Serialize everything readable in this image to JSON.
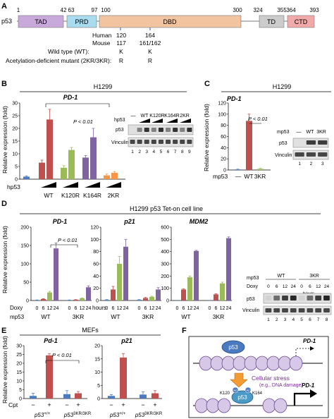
{
  "panel_a": {
    "label": "A",
    "protein": "p53",
    "boundaries": [
      "1",
      "42",
      "63",
      "97",
      "100",
      "300",
      "324",
      "355",
      "364",
      "393"
    ],
    "domains": [
      {
        "name": "TAD",
        "color": "#c9a8dc"
      },
      {
        "name": "PRD",
        "color": "#a8dcee"
      },
      {
        "name": "DBD",
        "color": "#f2c4a0"
      },
      {
        "name": "TD",
        "color": "#cccccc"
      },
      {
        "name": "CTD",
        "color": "#f2a9a9"
      }
    ],
    "rows": [
      {
        "label": "Human",
        "v1": "120",
        "v2": "164"
      },
      {
        "label": "Mouse",
        "v1": "117",
        "v2": "161/162"
      },
      {
        "label": "Wild type (WT):",
        "v1": "K",
        "v2": "K"
      },
      {
        "label": "Acetylation-deficient mutant (2KR/3KR):",
        "v1": "R",
        "v2": "R"
      }
    ]
  },
  "panel_b": {
    "label": "B",
    "cell_line": "H1299",
    "gene": "PD-1",
    "pvalue": "P < 0.01",
    "ylabel": "Relative expression (fold)",
    "x_name": "hp53",
    "groups": [
      "WT",
      "K120R",
      "K164R",
      "2KR"
    ],
    "blot": {
      "lane_header": "hp53",
      "groups": [
        "—",
        "WT",
        "K120R",
        "K164R",
        "2KR"
      ],
      "rows": [
        "p53",
        "Vinculin"
      ],
      "lanes": [
        "1",
        "2",
        "3",
        "4",
        "5",
        "6",
        "7",
        "8",
        "9"
      ]
    }
  },
  "panel_c": {
    "label": "C",
    "cell_line": "H1299",
    "gene": "PD-1",
    "pvalue": "P < 0.01",
    "ylabel": "Relative expression (fold)",
    "x_name": "mp53",
    "blot": {
      "lane_header": "mp53",
      "groups": [
        "—",
        "WT",
        "3KR"
      ],
      "rows": [
        "p53",
        "Vinculin"
      ],
      "lanes": [
        "1",
        "2",
        "3"
      ]
    }
  },
  "panel_d": {
    "label": "D",
    "cell_line": "H1299 p53 Tet-on cell line",
    "ylabel": "Relative expression (fold)",
    "genes": [
      "PD-1",
      "p21",
      "MDM2"
    ],
    "pvalue": "P < 0.01",
    "doxy_label": "Doxy",
    "hours_label": "hours",
    "mp53_label": "mp53",
    "groups": [
      "WT",
      "3KR"
    ],
    "time_points": [
      "0",
      "6",
      "12",
      "24"
    ],
    "blot": {
      "lane_header": "mp53",
      "doxy_label": "Doxy",
      "hours_label": "hours",
      "groups": [
        "WT",
        "3KR"
      ],
      "rows": [
        "p53",
        "Vinculin"
      ],
      "lanes": [
        "1",
        "2",
        "3",
        "4",
        "5",
        "6",
        "7",
        "8"
      ]
    }
  },
  "panel_e": {
    "label": "E",
    "cell_line": "MEFs",
    "genes": [
      "Pd-1",
      "p21"
    ],
    "pvalue": "P < 0.01",
    "ylabel": "Relative expression (fold)",
    "x_name": "Cpt",
    "signs": [
      "−",
      "+"
    ],
    "genotypes": [
      "p53+/+",
      "p533KR/3KR"
    ]
  },
  "panel_f": {
    "label": "F",
    "p53_label": "p53",
    "gene": "PD-1",
    "stress_title": "Cellular stress",
    "stress_sub": "(e.g., DNA damage)",
    "k120": "K120",
    "k164": "K164",
    "ac": "Ac"
  },
  "colors": {
    "blue": "#4a7bc1",
    "red": "#c0504d",
    "green": "#9bbb59",
    "purple": "#8064a2",
    "orange": "#f79646"
  },
  "chart_data": [
    {
      "panel": "B",
      "type": "bar",
      "title": "PD-1",
      "ylabel": "Relative expression (fold)",
      "ylim": [
        0,
        30
      ],
      "yticks": [
        0,
        5,
        10,
        15,
        20,
        25,
        30
      ],
      "values": [
        1,
        6.5,
        23.5,
        4.5,
        11.5,
        8.5,
        16.5,
        1.5,
        2.5
      ],
      "errors": [
        0.3,
        1.0,
        4.0,
        0.8,
        1.0,
        0.8,
        3.5,
        0.5,
        0.5
      ],
      "colors": [
        "blue",
        "red",
        "red",
        "green",
        "green",
        "purple",
        "purple",
        "orange",
        "orange"
      ]
    },
    {
      "panel": "C",
      "type": "bar",
      "title": "PD-1",
      "ylabel": "Relative expression (fold)",
      "ylim": [
        0,
        120
      ],
      "yticks": [
        0,
        20,
        40,
        60,
        80,
        100,
        120
      ],
      "values": [
        1,
        88,
        2
      ],
      "errors": [
        0.5,
        12,
        1
      ],
      "colors": [
        "blue",
        "red",
        "green"
      ]
    },
    {
      "panel": "D",
      "type": "bar",
      "title": "PD-1",
      "ylim": [
        0,
        200
      ],
      "yticks": [
        0,
        50,
        100,
        150,
        200
      ],
      "values": [
        1,
        4,
        22,
        142,
        1,
        2,
        6,
        36
      ],
      "errors": [
        0.5,
        1,
        3,
        15,
        0.5,
        0.5,
        1,
        4
      ],
      "colors": [
        "blue",
        "red",
        "green",
        "purple",
        "blue",
        "red",
        "green",
        "purple"
      ]
    },
    {
      "panel": "D",
      "type": "bar",
      "title": "p21",
      "ylim": [
        0,
        120
      ],
      "yticks": [
        0,
        20,
        40,
        60,
        80,
        100,
        120
      ],
      "values": [
        1,
        18,
        60,
        88,
        1,
        4,
        6,
        18
      ],
      "errors": [
        0.5,
        5,
        12,
        12,
        0.5,
        1,
        1,
        3
      ],
      "colors": [
        "blue",
        "red",
        "green",
        "purple",
        "blue",
        "red",
        "green",
        "purple"
      ]
    },
    {
      "panel": "D",
      "type": "bar",
      "title": "MDM2",
      "ylim": [
        0,
        600
      ],
      "yticks": [
        0,
        100,
        200,
        300,
        400,
        500,
        600
      ],
      "values": [
        1,
        90,
        190,
        405,
        1,
        50,
        140,
        510
      ],
      "errors": [
        0.5,
        5,
        10,
        5,
        0.5,
        5,
        10,
        10
      ],
      "colors": [
        "blue",
        "red",
        "green",
        "purple",
        "blue",
        "red",
        "green",
        "purple"
      ]
    },
    {
      "panel": "E",
      "type": "bar",
      "title": "Pd-1",
      "ylabel": "Relative expression (fold)",
      "ylim": [
        0,
        30
      ],
      "yticks": [
        0,
        5,
        10,
        15,
        20,
        25,
        30
      ],
      "values": [
        1.5,
        24.5,
        2.5,
        3.0
      ],
      "errors": [
        1.5,
        1.0,
        2.0,
        1.0
      ],
      "colors": [
        "blue",
        "red",
        "blue",
        "red"
      ]
    },
    {
      "panel": "E",
      "type": "bar",
      "title": "p21",
      "ylim": [
        0,
        20
      ],
      "yticks": [
        0,
        5,
        10,
        15,
        20
      ],
      "values": [
        1.0,
        15.5,
        1.5,
        2.0
      ],
      "errors": [
        0.5,
        1.5,
        1.0,
        1.0
      ],
      "colors": [
        "blue",
        "red",
        "blue",
        "red"
      ]
    }
  ]
}
